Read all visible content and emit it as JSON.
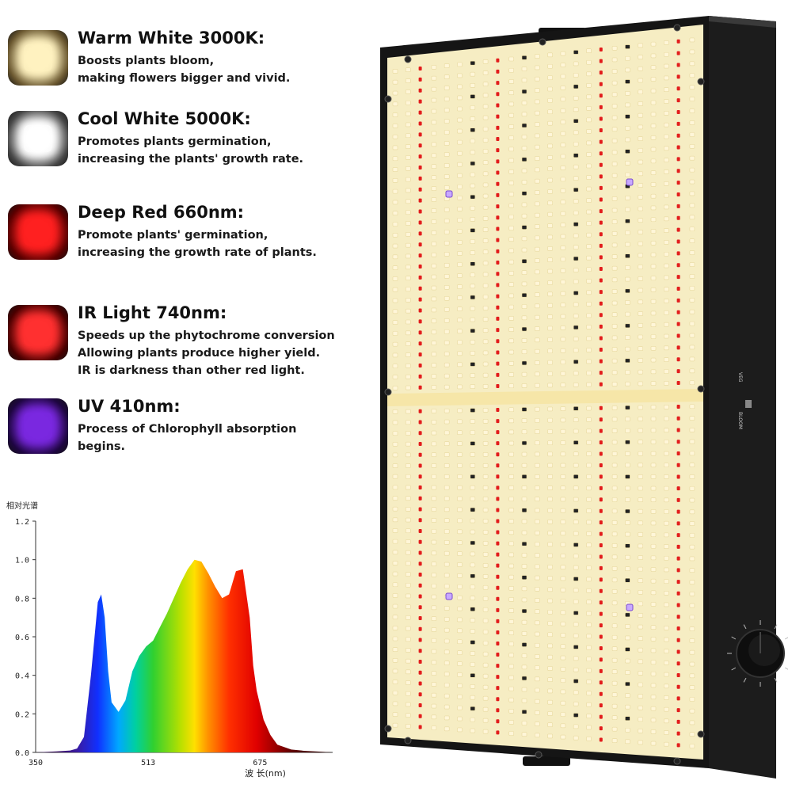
{
  "legend": {
    "items": [
      {
        "title": "Warm White 3000K:",
        "lines": [
          "Boosts plants bloom,",
          "making flowers bigger and vivid."
        ],
        "color": "#fff2c0",
        "edge": "#6b5830",
        "icon": "warm-white-led-icon"
      },
      {
        "title": "Cool White 5000K:",
        "lines": [
          "Promotes plants germination,",
          "increasing the plants' growth rate."
        ],
        "color": "#ffffff",
        "edge": "#4a4a4a",
        "icon": "cool-white-led-icon"
      },
      {
        "title": "Deep Red 660nm:",
        "lines": [
          "Promote plants' germination,",
          "increasing the growth rate of plants."
        ],
        "color": "#ff2020",
        "edge": "#5a0000",
        "icon": "deep-red-led-icon"
      },
      {
        "title": "IR Light 740nm:",
        "lines": [
          "Speeds up the phytochrome conversion",
          "Allowing plants produce higher yield.",
          "IR is darkness than other red light."
        ],
        "color": "#ff3030",
        "edge": "#4a0000",
        "icon": "ir-led-icon"
      },
      {
        "title": "UV 410nm:",
        "lines": [
          "Process of Chlorophyll absorption",
          "begins."
        ],
        "color": "#7a28e0",
        "edge": "#1e0640",
        "icon": "uv-led-icon"
      }
    ]
  },
  "chart_data": {
    "type": "area",
    "title": "相对光谱",
    "xlabel": "波 长(nm)",
    "ylabel": "",
    "xlim": [
      350,
      780
    ],
    "ylim": [
      0,
      1.2
    ],
    "x_ticks": [
      "350",
      "513",
      "675"
    ],
    "y_ticks": [
      "0.0",
      "0.2",
      "0.4",
      "0.6",
      "0.8",
      "1.0",
      "1.2"
    ],
    "series": [
      {
        "x": [
          350,
          380,
          400,
          410,
          420,
          430,
          440,
          445,
          450,
          455,
          460,
          470,
          480,
          490,
          500,
          510,
          520,
          530,
          540,
          550,
          560,
          570,
          580,
          590,
          600,
          610,
          620,
          630,
          640,
          650,
          660,
          665,
          670,
          680,
          690,
          700,
          720,
          740,
          760,
          780
        ],
        "values": [
          0.0,
          0.005,
          0.01,
          0.02,
          0.08,
          0.4,
          0.78,
          0.82,
          0.7,
          0.42,
          0.26,
          0.21,
          0.27,
          0.42,
          0.5,
          0.55,
          0.58,
          0.65,
          0.72,
          0.8,
          0.88,
          0.95,
          1.0,
          0.99,
          0.93,
          0.86,
          0.8,
          0.82,
          0.94,
          0.95,
          0.7,
          0.45,
          0.32,
          0.17,
          0.09,
          0.04,
          0.015,
          0.008,
          0.004,
          0.0
        ]
      }
    ]
  },
  "panel": {
    "switch_label_left": "VEG",
    "switch_label_right": "BLOOM"
  }
}
